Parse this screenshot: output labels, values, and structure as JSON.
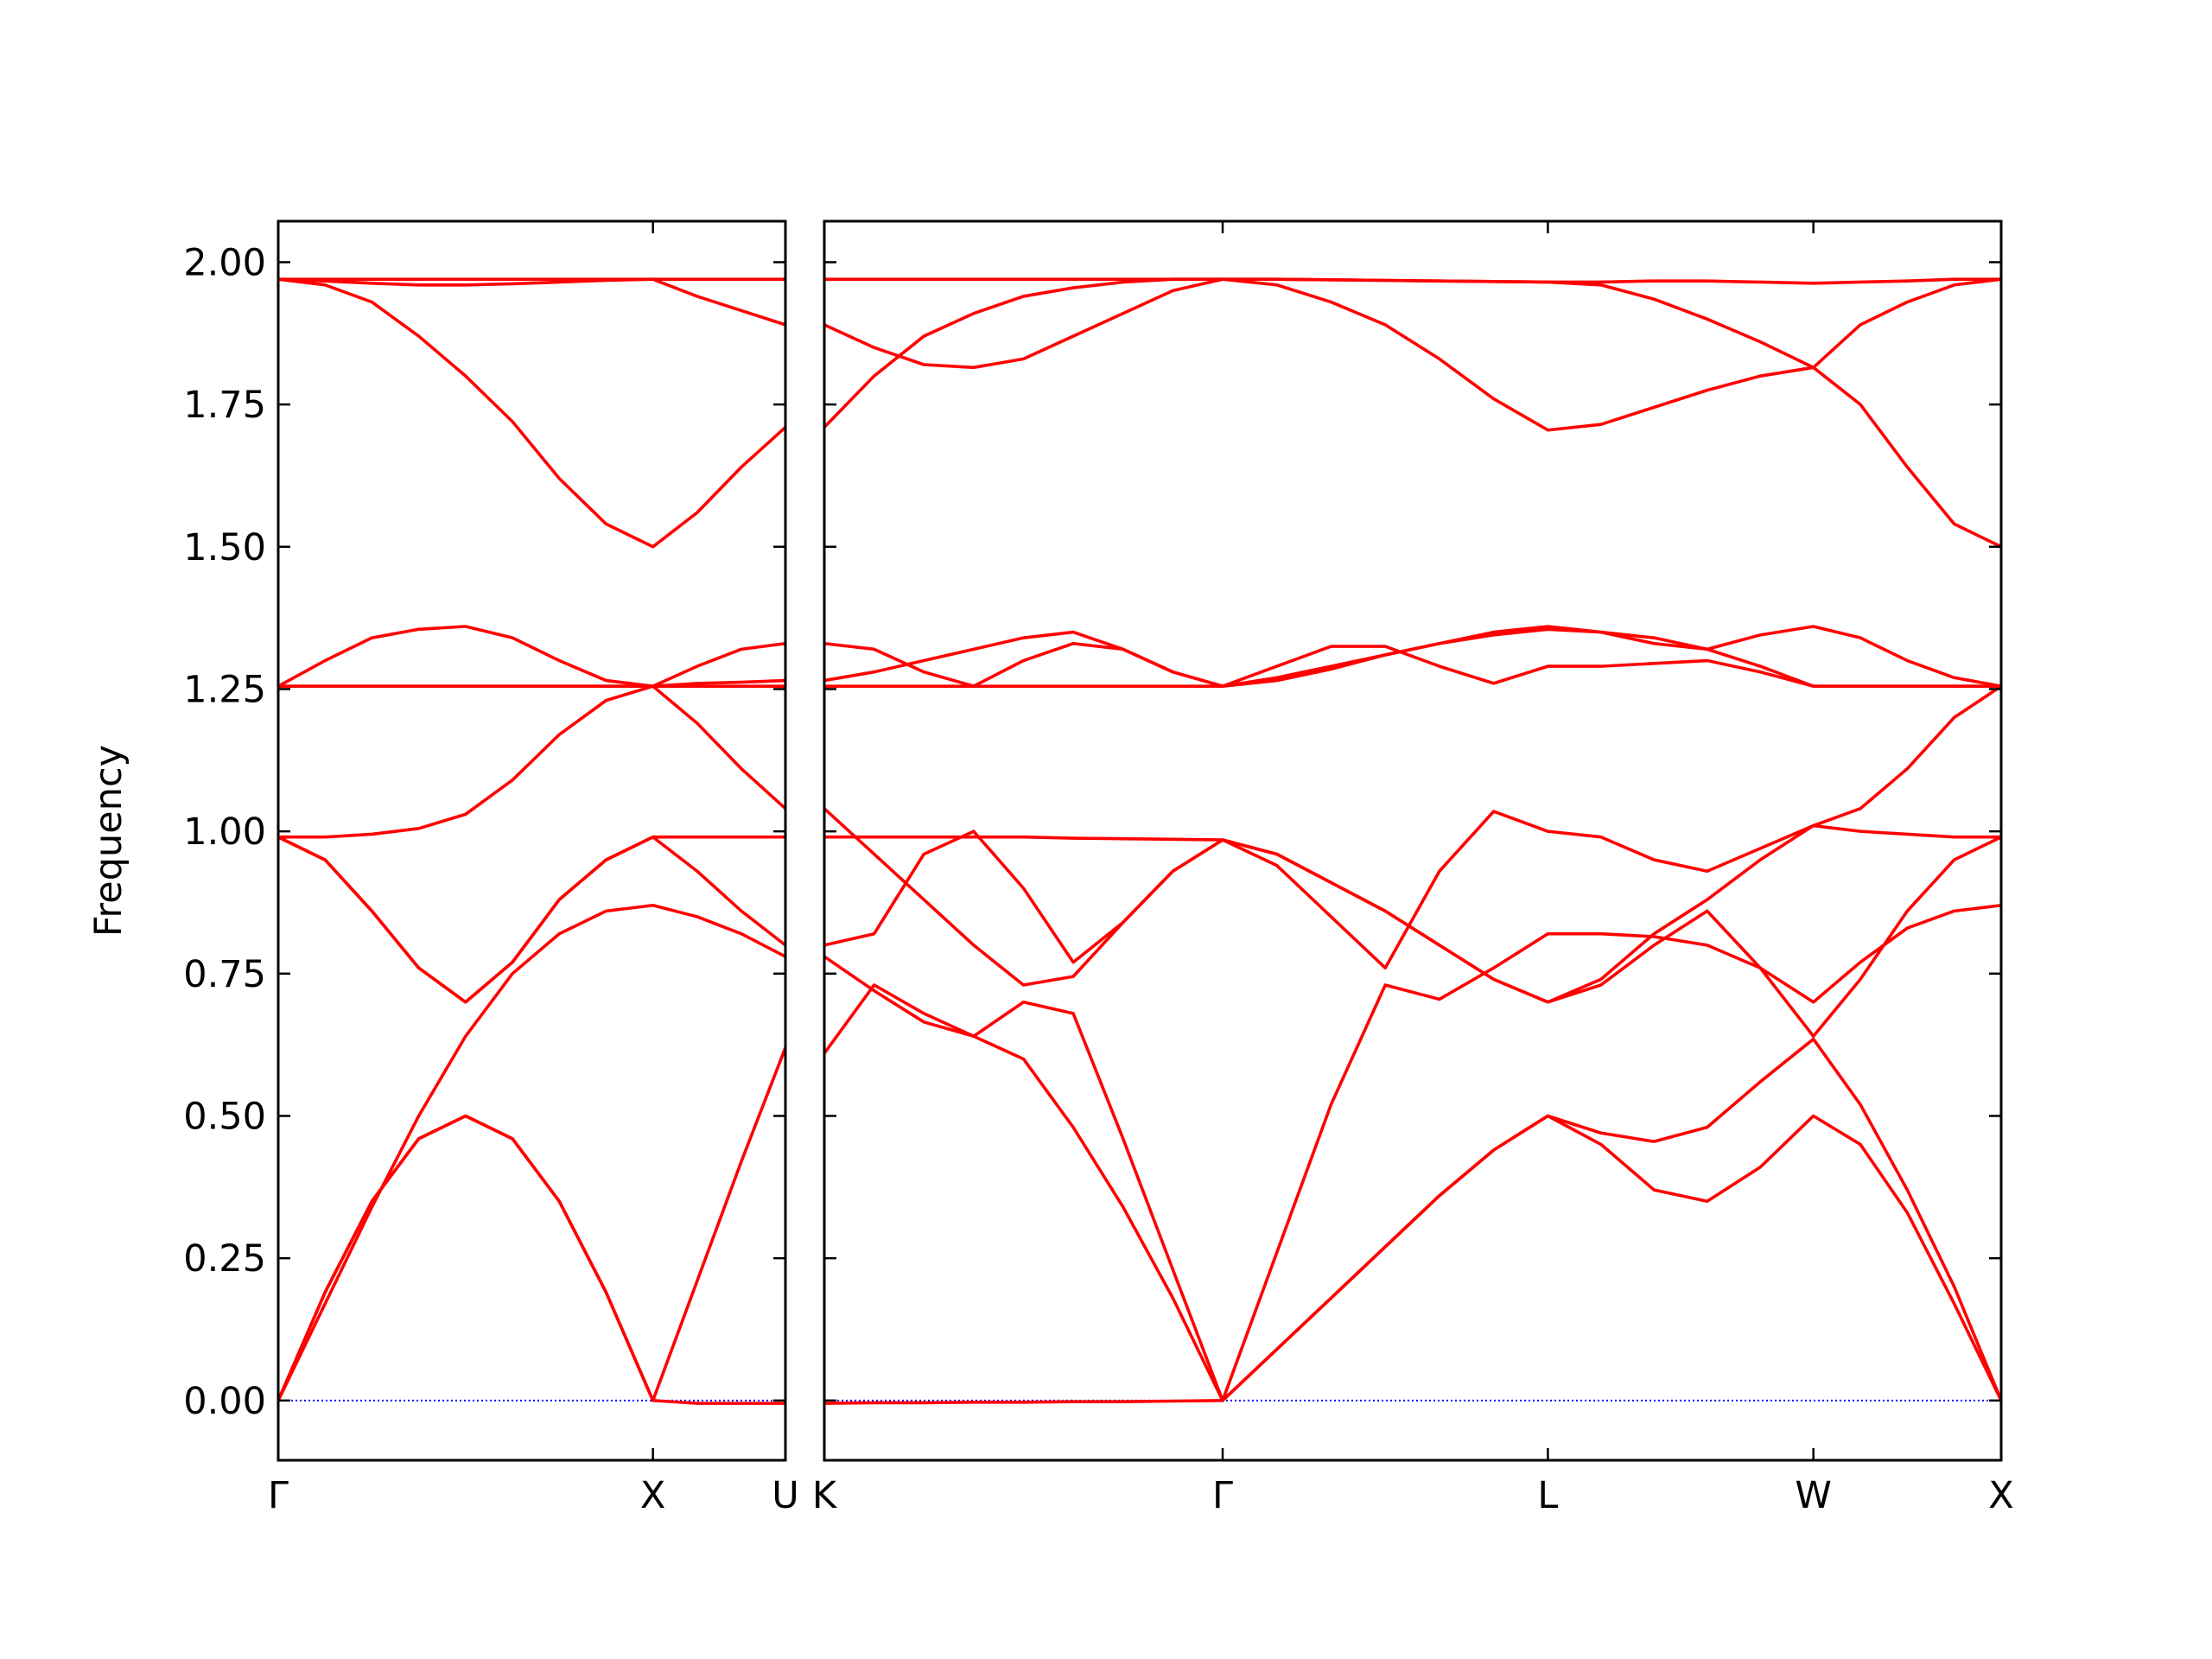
{
  "chart_data": [
    {
      "type": "line",
      "ylabel": "Frequency",
      "color": "#ff0000",
      "x": [
        0,
        0.125,
        0.25,
        0.375,
        0.5,
        0.625,
        0.75,
        0.875,
        1,
        1.118,
        1.236,
        1.3536
      ],
      "series": [
        {
          "values": [
            0,
            0.19,
            0.35,
            0.46,
            0.5,
            0.46,
            0.35,
            0.19,
            0,
            -0.005,
            -0.005,
            -0.005
          ]
        },
        {
          "values": [
            0,
            0.19,
            0.35,
            0.46,
            0.5,
            0.46,
            0.35,
            0.19,
            0,
            0.21,
            0.42,
            0.62
          ]
        },
        {
          "values": [
            0,
            0.17,
            0.34,
            0.5,
            0.64,
            0.75,
            0.82,
            0.86,
            0.87,
            0.85,
            0.82,
            0.78
          ]
        },
        {
          "values": [
            0.99,
            0.95,
            0.86,
            0.76,
            0.7,
            0.77,
            0.88,
            0.95,
            0.99,
            0.93,
            0.86,
            0.8
          ]
        },
        {
          "values": [
            0.99,
            0.95,
            0.86,
            0.76,
            0.7,
            0.77,
            0.88,
            0.95,
            0.99,
            0.99,
            0.99,
            0.99
          ]
        },
        {
          "values": [
            0.99,
            0.99,
            0.995,
            1.005,
            1.03,
            1.09,
            1.17,
            1.23,
            1.255,
            1.19,
            1.11,
            1.04
          ]
        },
        {
          "values": [
            1.255,
            1.255,
            1.255,
            1.255,
            1.255,
            1.255,
            1.255,
            1.255,
            1.255,
            1.26,
            1.262,
            1.265
          ]
        },
        {
          "values": [
            1.255,
            1.255,
            1.255,
            1.255,
            1.255,
            1.255,
            1.255,
            1.255,
            1.255,
            1.255,
            1.255,
            1.255
          ]
        },
        {
          "values": [
            1.255,
            1.3,
            1.34,
            1.355,
            1.36,
            1.34,
            1.3,
            1.265,
            1.255,
            1.29,
            1.32,
            1.33
          ]
        },
        {
          "values": [
            1.97,
            1.97,
            1.97,
            1.97,
            1.97,
            1.97,
            1.97,
            1.97,
            1.97,
            1.94,
            1.915,
            1.89
          ]
        },
        {
          "values": [
            1.97,
            1.967,
            1.963,
            1.96,
            1.96,
            1.962,
            1.965,
            1.968,
            1.97,
            1.97,
            1.97,
            1.97
          ]
        },
        {
          "values": [
            1.97,
            1.96,
            1.93,
            1.87,
            1.8,
            1.72,
            1.62,
            1.54,
            1.5,
            1.56,
            1.64,
            1.71
          ]
        }
      ],
      "xlim": [
        0,
        1.3536
      ],
      "xticks": [
        {
          "value": 0,
          "label": "Γ"
        },
        {
          "value": 1,
          "label": "X"
        },
        {
          "value": 1.3536,
          "label": "U"
        }
      ],
      "ylim": [
        -0.105,
        2.072
      ],
      "yticks": [
        {
          "value": 0,
          "label": "0.00"
        },
        {
          "value": 0.25,
          "label": "0.25"
        },
        {
          "value": 0.5,
          "label": "0.50"
        },
        {
          "value": 0.75,
          "label": "0.75"
        },
        {
          "value": 1,
          "label": "1.00"
        },
        {
          "value": 1.25,
          "label": "1.25"
        },
        {
          "value": 1.5,
          "label": "1.50"
        },
        {
          "value": 1.75,
          "label": "1.75"
        },
        {
          "value": 2,
          "label": "2.00"
        }
      ],
      "hlines": [
        {
          "value": 0,
          "color": "#0000ff"
        }
      ]
    },
    {
      "type": "line",
      "color": "#ff0000",
      "show_ytick_labels": false,
      "x": [
        0,
        0.1326,
        0.2652,
        0.3978,
        0.5304,
        0.6629,
        0.7955,
        0.9281,
        1.0607,
        1.205,
        1.3494,
        1.4937,
        1.638,
        1.7824,
        1.9267,
        2.0681,
        2.2095,
        2.351,
        2.4924,
        2.6338,
        2.7588,
        2.8838,
        3.0088,
        3.1338
      ],
      "series": [
        {
          "values": [
            -0.005,
            -0.004,
            -0.004,
            -0.003,
            -0.003,
            -0.002,
            -0.002,
            -0.001,
            0,
            0.09,
            0.18,
            0.27,
            0.36,
            0.44,
            0.5,
            0.45,
            0.37,
            0.35,
            0.41,
            0.5,
            0.45,
            0.33,
            0.17,
            0
          ]
        },
        {
          "values": [
            0.61,
            0.73,
            0.68,
            0.64,
            0.6,
            0.48,
            0.34,
            0.18,
            0,
            0.09,
            0.18,
            0.27,
            0.36,
            0.44,
            0.5,
            0.47,
            0.455,
            0.48,
            0.56,
            0.635,
            0.52,
            0.37,
            0.2,
            0
          ]
        },
        {
          "values": [
            0.78,
            0.72,
            0.665,
            0.64,
            0.7,
            0.68,
            0.46,
            0.23,
            0,
            0.26,
            0.52,
            0.73,
            0.705,
            0.76,
            0.82,
            0.82,
            0.815,
            0.8,
            0.76,
            0.7,
            0.77,
            0.83,
            0.86,
            0.87
          ]
        },
        {
          "values": [
            0.8,
            0.82,
            0.96,
            1,
            0.9,
            0.77,
            0.84,
            0.93,
            0.985,
            0.94,
            0.85,
            0.76,
            0.93,
            1.035,
            1,
            0.99,
            0.95,
            0.93,
            0.97,
            1.01,
            1,
            0.995,
            0.99,
            0.99
          ]
        },
        {
          "values": [
            0.99,
            0.99,
            0.99,
            0.99,
            0.99,
            0.988,
            0.987,
            0.986,
            0.985,
            0.96,
            0.91,
            0.86,
            0.8,
            0.74,
            0.7,
            0.73,
            0.8,
            0.86,
            0.76,
            0.64,
            0.74,
            0.86,
            0.95,
            0.99
          ]
        },
        {
          "values": [
            1.04,
            0.96,
            0.88,
            0.8,
            0.73,
            0.745,
            0.84,
            0.93,
            0.985,
            0.96,
            0.91,
            0.86,
            0.8,
            0.74,
            0.7,
            0.74,
            0.82,
            0.88,
            0.95,
            1.01,
            1.04,
            1.11,
            1.2,
            1.255
          ]
        },
        {
          "values": [
            1.265,
            1.28,
            1.3,
            1.32,
            1.34,
            1.35,
            1.32,
            1.28,
            1.255,
            1.27,
            1.29,
            1.31,
            1.33,
            1.345,
            1.355,
            1.35,
            1.34,
            1.32,
            1.29,
            1.255,
            1.255,
            1.255,
            1.255,
            1.255
          ]
        },
        {
          "values": [
            1.33,
            1.32,
            1.28,
            1.255,
            1.3,
            1.33,
            1.32,
            1.28,
            1.255,
            1.29,
            1.325,
            1.325,
            1.29,
            1.26,
            1.29,
            1.29,
            1.295,
            1.3,
            1.28,
            1.255,
            1.255,
            1.255,
            1.255,
            1.255
          ]
        },
        {
          "values": [
            1.255,
            1.255,
            1.255,
            1.255,
            1.255,
            1.255,
            1.255,
            1.255,
            1.255,
            1.265,
            1.285,
            1.31,
            1.33,
            1.35,
            1.36,
            1.35,
            1.33,
            1.32,
            1.345,
            1.36,
            1.34,
            1.3,
            1.27,
            1.255
          ]
        },
        {
          "values": [
            1.71,
            1.8,
            1.87,
            1.91,
            1.94,
            1.955,
            1.965,
            1.97,
            1.97,
            1.96,
            1.93,
            1.89,
            1.83,
            1.76,
            1.705,
            1.715,
            1.745,
            1.775,
            1.8,
            1.815,
            1.89,
            1.93,
            1.96,
            1.97
          ]
        },
        {
          "values": [
            1.89,
            1.85,
            1.82,
            1.815,
            1.83,
            1.87,
            1.91,
            1.95,
            1.97,
            1.97,
            1.969,
            1.968,
            1.967,
            1.966,
            1.965,
            1.96,
            1.935,
            1.9,
            1.86,
            1.815,
            1.75,
            1.64,
            1.54,
            1.5
          ]
        },
        {
          "values": [
            1.97,
            1.97,
            1.97,
            1.97,
            1.97,
            1.97,
            1.97,
            1.97,
            1.97,
            1.97,
            1.969,
            1.968,
            1.967,
            1.966,
            1.965,
            1.965,
            1.967,
            1.967,
            1.965,
            1.963,
            1.965,
            1.967,
            1.97,
            1.97
          ]
        }
      ],
      "xlim": [
        0,
        3.1338
      ],
      "xticks": [
        {
          "value": 0,
          "label": "K"
        },
        {
          "value": 1.0607,
          "label": "Γ"
        },
        {
          "value": 1.9267,
          "label": "L"
        },
        {
          "value": 2.6338,
          "label": "W"
        },
        {
          "value": 3.1338,
          "label": "X"
        }
      ],
      "ylim": [
        -0.105,
        2.072
      ],
      "yticks": [
        0,
        0.25,
        0.5,
        0.75,
        1,
        1.25,
        1.5,
        1.75,
        2
      ],
      "hlines": [
        {
          "value": 0,
          "color": "#0000ff"
        }
      ]
    }
  ]
}
